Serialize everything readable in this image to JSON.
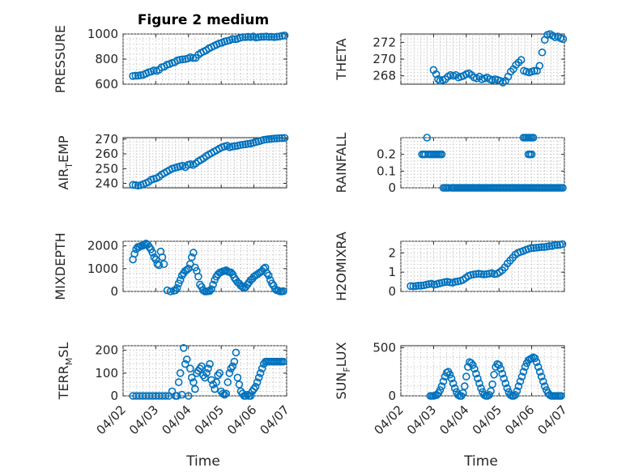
{
  "figure": {
    "title": "Figure 2 medium",
    "marker_color": "#0072bd",
    "axis_color": "#262626",
    "grid": true,
    "xlabel": "Time",
    "x_ticks": [
      "04/02",
      "04/03",
      "04/04",
      "04/05",
      "04/06",
      "04/07"
    ],
    "xlim": [
      0,
      5
    ]
  },
  "chart_data": [
    {
      "type": "scatter",
      "ylabel": [
        "PRESSURE"
      ],
      "ylim": [
        600,
        1000
      ],
      "yticks": [
        "600",
        "800",
        "1000"
      ],
      "ytick_values": [
        600,
        800,
        1000
      ],
      "x": [
        0.3,
        0.38,
        0.46,
        0.54,
        0.62,
        0.7,
        0.78,
        0.86,
        0.94,
        1.02,
        1.1,
        1.18,
        1.26,
        1.34,
        1.42,
        1.5,
        1.58,
        1.66,
        1.74,
        1.82,
        1.9,
        1.98,
        2.06,
        2.14,
        2.22,
        2.3,
        2.38,
        2.46,
        2.54,
        2.62,
        2.7,
        2.78,
        2.86,
        2.94,
        3.02,
        3.1,
        3.18,
        3.26,
        3.34,
        3.42,
        3.5,
        3.58,
        3.66,
        3.74,
        3.82,
        3.9,
        3.98,
        4.06,
        4.14,
        4.22,
        4.3,
        4.38,
        4.46,
        4.54,
        4.62,
        4.7,
        4.78,
        4.86,
        4.94
      ],
      "y": [
        665,
        668,
        668,
        672,
        675,
        685,
        695,
        700,
        710,
        705,
        715,
        735,
        740,
        755,
        760,
        770,
        775,
        790,
        795,
        798,
        800,
        805,
        815,
        808,
        810,
        835,
        850,
        860,
        870,
        885,
        895,
        905,
        915,
        925,
        930,
        940,
        945,
        950,
        960,
        958,
        962,
        970,
        975,
        975,
        978,
        975,
        980,
        972,
        975,
        978,
        978,
        980,
        977,
        978,
        975,
        978,
        980,
        985,
        988
      ]
    },
    {
      "type": "scatter",
      "ylabel": [
        "THETA"
      ],
      "ylim": [
        267,
        273
      ],
      "yticks": [
        "268",
        "270",
        "272"
      ],
      "ytick_values": [
        268,
        270,
        272
      ],
      "x": [
        1.0,
        1.08,
        1.14,
        1.2,
        1.28,
        1.36,
        1.44,
        1.52,
        1.6,
        1.68,
        1.76,
        1.84,
        1.92,
        2.0,
        2.08,
        2.16,
        2.24,
        2.32,
        2.4,
        2.48,
        2.56,
        2.64,
        2.72,
        2.8,
        2.88,
        2.96,
        3.04,
        3.12,
        3.2,
        3.28,
        3.36,
        3.44,
        3.52,
        3.6,
        3.68,
        3.76,
        3.84,
        3.92,
        4.0,
        4.08,
        4.16,
        4.24,
        4.32,
        4.4,
        4.48,
        4.56,
        4.64,
        4.72,
        4.8,
        4.88,
        4.96
      ],
      "y": [
        268.7,
        268.2,
        267.6,
        267.4,
        267.5,
        267.6,
        267.9,
        268.1,
        268.0,
        268.1,
        267.8,
        267.9,
        268.0,
        268.2,
        268.3,
        268.1,
        267.8,
        267.7,
        267.9,
        267.6,
        267.7,
        267.8,
        267.6,
        267.5,
        267.6,
        267.5,
        267.4,
        267.2,
        267.4,
        267.9,
        268.5,
        268.8,
        269.3,
        269.6,
        269.9,
        268.6,
        268.5,
        268.4,
        268.5,
        268.6,
        268.6,
        269.2,
        270.8,
        272.3,
        272.9,
        273.0,
        272.8,
        272.6,
        272.7,
        272.5,
        272.4
      ]
    },
    {
      "type": "scatter",
      "ylabel": [
        "AIR",
        "T",
        "EMP"
      ],
      "ylim": [
        237,
        271
      ],
      "yticks": [
        "240",
        "250",
        "260",
        "270"
      ],
      "ytick_values": [
        240,
        250,
        260,
        270
      ],
      "x": [
        0.3,
        0.38,
        0.46,
        0.54,
        0.62,
        0.7,
        0.78,
        0.86,
        0.94,
        1.02,
        1.1,
        1.18,
        1.26,
        1.34,
        1.42,
        1.5,
        1.58,
        1.66,
        1.74,
        1.82,
        1.9,
        1.98,
        2.06,
        2.14,
        2.22,
        2.3,
        2.38,
        2.46,
        2.54,
        2.62,
        2.7,
        2.78,
        2.86,
        2.94,
        3.02,
        3.1,
        3.18,
        3.26,
        3.34,
        3.42,
        3.5,
        3.58,
        3.66,
        3.74,
        3.82,
        3.9,
        3.98,
        4.06,
        4.14,
        4.22,
        4.3,
        4.38,
        4.46,
        4.54,
        4.62,
        4.7,
        4.78,
        4.86,
        4.94
      ],
      "y": [
        239,
        238.8,
        238.5,
        238.8,
        239.5,
        240.2,
        241,
        242.5,
        243,
        243.5,
        244.5,
        246,
        247,
        248,
        249,
        250,
        250.5,
        251,
        251.5,
        252,
        251,
        252.5,
        253,
        252.5,
        253.5,
        255,
        256,
        257,
        258.5,
        259.5,
        260.5,
        261.5,
        262.5,
        263.5,
        264.5,
        265,
        265.5,
        264.5,
        265,
        265.2,
        265.5,
        266,
        266.2,
        266.5,
        266.8,
        267,
        267.5,
        268,
        268.5,
        269,
        269.5,
        269.8,
        270,
        270.2,
        270.4,
        270.5,
        270.6,
        270.7,
        270.8
      ]
    },
    {
      "type": "scatter",
      "ylabel": [
        "RAINFALL"
      ],
      "ylim": [
        0,
        0.3
      ],
      "yticks": [
        "0",
        "0.1",
        "0.2"
      ],
      "ytick_values": [
        0,
        0.1,
        0.2
      ],
      "x": [
        0.65,
        0.7,
        0.75,
        0.8,
        0.85,
        0.9,
        0.95,
        1.0,
        1.05,
        1.1,
        1.15,
        1.2,
        1.25,
        1.3,
        1.35,
        1.4,
        1.45,
        1.55,
        1.6,
        1.65,
        1.7,
        1.75,
        1.8,
        1.85,
        1.9,
        1.95,
        2.0,
        2.05,
        2.1,
        2.15,
        2.2,
        2.25,
        2.3,
        2.35,
        2.4,
        2.45,
        2.5,
        2.55,
        2.6,
        2.65,
        2.7,
        2.75,
        2.8,
        2.85,
        2.9,
        2.95,
        3.0,
        3.05,
        3.1,
        3.15,
        3.2,
        3.25,
        3.3,
        3.35,
        3.4,
        3.45,
        3.5,
        3.55,
        3.6,
        3.65,
        3.7,
        3.75,
        3.8,
        3.85,
        3.9,
        3.95,
        4.0,
        4.05,
        4.1,
        4.15,
        4.2,
        4.25,
        4.3,
        4.35,
        4.4,
        4.45,
        4.5,
        4.55,
        4.6,
        4.65,
        4.7,
        4.75,
        4.8,
        4.85,
        4.9,
        4.95,
        3.75,
        3.8,
        3.85,
        3.9,
        3.95,
        4.0,
        4.05,
        3.9,
        3.95,
        4.0
      ],
      "y": [
        0.2,
        0.2,
        0.2,
        0.3,
        0.2,
        0.2,
        0.2,
        0.2,
        0.2,
        0.2,
        0.2,
        0.2,
        0.2,
        0.0,
        0.0,
        0.0,
        0.0,
        0.0,
        0.0,
        0.0,
        0.0,
        0.0,
        0.0,
        0.0,
        0.0,
        0.0,
        0.0,
        0.0,
        0.0,
        0.0,
        0.0,
        0.0,
        0.0,
        0.0,
        0.0,
        0.0,
        0.0,
        0.0,
        0.0,
        0.0,
        0.0,
        0.0,
        0.0,
        0.0,
        0.0,
        0.0,
        0.0,
        0.0,
        0.0,
        0.0,
        0.0,
        0.0,
        0.0,
        0.0,
        0.0,
        0.0,
        0.0,
        0.0,
        0.0,
        0.0,
        0.0,
        0.0,
        0.0,
        0.0,
        0.0,
        0.0,
        0.0,
        0.0,
        0.0,
        0.0,
        0.0,
        0.0,
        0.0,
        0.0,
        0.0,
        0.0,
        0.0,
        0.0,
        0.0,
        0.0,
        0.0,
        0.0,
        0.0,
        0.0,
        0.0,
        0.0,
        0.3,
        0.3,
        0.3,
        0.3,
        0.3,
        0.3,
        0.3,
        0.2,
        0.2,
        0.2
      ]
    },
    {
      "type": "scatter",
      "ylabel": [
        "MIXDEPTH"
      ],
      "ylim": [
        0,
        2200
      ],
      "yticks": [
        "0",
        "1000",
        "2000"
      ],
      "ytick_values": [
        0,
        1000,
        2000
      ],
      "x": [
        0.3,
        0.35,
        0.4,
        0.45,
        0.5,
        0.55,
        0.6,
        0.65,
        0.7,
        0.75,
        0.8,
        0.85,
        0.9,
        0.95,
        1.0,
        1.05,
        1.1,
        1.15,
        1.2,
        1.25,
        1.35,
        1.45,
        1.55,
        1.6,
        1.65,
        1.7,
        1.75,
        1.8,
        1.85,
        1.9,
        1.95,
        2.0,
        2.05,
        2.1,
        2.15,
        2.2,
        2.25,
        2.3,
        2.35,
        2.4,
        2.45,
        2.5,
        2.55,
        2.6,
        2.65,
        2.7,
        2.75,
        2.8,
        2.85,
        2.9,
        2.95,
        3.0,
        3.05,
        3.1,
        3.15,
        3.2,
        3.25,
        3.3,
        3.35,
        3.4,
        3.45,
        3.5,
        3.55,
        3.6,
        3.65,
        3.7,
        3.75,
        3.8,
        3.85,
        3.9,
        3.95,
        4.0,
        4.05,
        4.1,
        4.15,
        4.2,
        4.25,
        4.3,
        4.35,
        4.4,
        4.45,
        4.5,
        4.55,
        4.6,
        4.65,
        4.7,
        4.75,
        4.8,
        4.85,
        4.9
      ],
      "y": [
        1400,
        1650,
        1850,
        1950,
        1950,
        2000,
        2000,
        2050,
        2100,
        2050,
        1950,
        1850,
        1700,
        1500,
        1400,
        1200,
        1150,
        1750,
        1500,
        1200,
        50,
        0,
        30,
        50,
        150,
        350,
        500,
        700,
        800,
        900,
        950,
        1000,
        1200,
        1500,
        1700,
        1050,
        900,
        650,
        300,
        200,
        50,
        0,
        0,
        10,
        20,
        100,
        300,
        500,
        650,
        750,
        820,
        850,
        880,
        900,
        930,
        870,
        850,
        830,
        750,
        600,
        500,
        400,
        350,
        250,
        200,
        150,
        200,
        300,
        400,
        500,
        550,
        650,
        700,
        750,
        800,
        850,
        900,
        1000,
        1050,
        800,
        700,
        500,
        350,
        250,
        100,
        50,
        30,
        0,
        0,
        10
      ]
    },
    {
      "type": "scatter",
      "ylabel": [
        "H2OMIXRA"
      ],
      "ylim": [
        0,
        2.6
      ],
      "yticks": [
        "0",
        "1",
        "2"
      ],
      "ytick_values": [
        0,
        1,
        2
      ],
      "x": [
        0.3,
        0.38,
        0.46,
        0.54,
        0.62,
        0.7,
        0.78,
        0.86,
        0.94,
        1.02,
        1.1,
        1.18,
        1.26,
        1.34,
        1.42,
        1.5,
        1.58,
        1.66,
        1.74,
        1.82,
        1.9,
        1.98,
        2.06,
        2.14,
        2.22,
        2.3,
        2.38,
        2.46,
        2.54,
        2.62,
        2.7,
        2.78,
        2.86,
        2.94,
        3.02,
        3.1,
        3.18,
        3.26,
        3.34,
        3.42,
        3.5,
        3.58,
        3.66,
        3.74,
        3.82,
        3.9,
        3.98,
        4.06,
        4.14,
        4.22,
        4.3,
        4.38,
        4.46,
        4.54,
        4.62,
        4.7,
        4.78,
        4.86,
        4.94
      ],
      "y": [
        0.28,
        0.27,
        0.28,
        0.3,
        0.3,
        0.32,
        0.35,
        0.38,
        0.4,
        0.35,
        0.38,
        0.42,
        0.45,
        0.48,
        0.5,
        0.47,
        0.45,
        0.5,
        0.52,
        0.55,
        0.6,
        0.7,
        0.8,
        0.85,
        0.88,
        0.9,
        0.92,
        0.9,
        0.88,
        0.9,
        0.92,
        0.95,
        0.9,
        0.92,
        1.0,
        1.1,
        1.25,
        1.45,
        1.6,
        1.75,
        1.9,
        2.0,
        2.05,
        2.1,
        2.15,
        2.2,
        2.25,
        2.25,
        2.27,
        2.28,
        2.3,
        2.3,
        2.32,
        2.35,
        2.35,
        2.4,
        2.4,
        2.42,
        2.45
      ]
    },
    {
      "type": "scatter",
      "ylabel": [
        "TERR",
        "M",
        "SL"
      ],
      "ylim": [
        0,
        220
      ],
      "yticks": [
        "0",
        "100",
        "200"
      ],
      "ytick_values": [
        0,
        100,
        200
      ],
      "x": [
        0.3,
        0.4,
        0.5,
        0.6,
        0.7,
        0.8,
        0.9,
        1.0,
        1.1,
        1.2,
        1.3,
        1.4,
        1.5,
        1.6,
        1.65,
        1.7,
        1.75,
        1.8,
        1.85,
        1.9,
        1.95,
        2.0,
        2.05,
        2.1,
        2.15,
        2.2,
        2.25,
        2.3,
        2.35,
        2.4,
        2.45,
        2.5,
        2.55,
        2.6,
        2.65,
        2.7,
        2.75,
        2.8,
        2.85,
        2.9,
        2.95,
        3.0,
        3.05,
        3.1,
        3.15,
        3.2,
        3.25,
        3.3,
        3.35,
        3.4,
        3.45,
        3.5,
        3.55,
        3.6,
        3.65,
        3.7,
        3.75,
        3.8,
        3.85,
        3.9,
        3.95,
        4.0,
        4.05,
        4.1,
        4.15,
        4.2,
        4.25,
        4.3,
        4.35,
        4.4,
        4.45,
        4.5,
        4.55,
        4.6,
        4.65,
        4.7,
        4.75,
        4.8,
        4.85,
        4.9
      ],
      "y": [
        0,
        0,
        0,
        0,
        0,
        0,
        0,
        0,
        0,
        0,
        0,
        0,
        20,
        0,
        0,
        60,
        100,
        5,
        210,
        140,
        160,
        0,
        120,
        80,
        60,
        30,
        100,
        110,
        120,
        130,
        90,
        80,
        100,
        120,
        140,
        70,
        50,
        30,
        60,
        90,
        100,
        20,
        10,
        5,
        10,
        60,
        100,
        120,
        130,
        150,
        190,
        80,
        50,
        20,
        10,
        0,
        0,
        5,
        0,
        0,
        20,
        30,
        40,
        60,
        80,
        100,
        120,
        140,
        150,
        150,
        150,
        150,
        150,
        150,
        150,
        150,
        150,
        150,
        150,
        150
      ]
    },
    {
      "type": "scatter",
      "ylabel": [
        "SUN",
        "F",
        "LUX"
      ],
      "ylim": [
        0,
        520
      ],
      "yticks": [
        "0",
        "500"
      ],
      "ytick_values": [
        0,
        500
      ],
      "x": [
        0.9,
        0.95,
        1.0,
        1.05,
        1.1,
        1.15,
        1.2,
        1.25,
        1.3,
        1.35,
        1.4,
        1.45,
        1.5,
        1.55,
        1.6,
        1.65,
        1.7,
        1.75,
        1.8,
        1.85,
        1.9,
        1.95,
        2.0,
        2.05,
        2.1,
        2.15,
        2.2,
        2.25,
        2.3,
        2.35,
        2.4,
        2.45,
        2.5,
        2.55,
        2.6,
        2.65,
        2.7,
        2.75,
        2.8,
        2.85,
        2.9,
        2.95,
        3.0,
        3.05,
        3.1,
        3.15,
        3.2,
        3.25,
        3.3,
        3.35,
        3.4,
        3.45,
        3.5,
        3.55,
        3.6,
        3.65,
        3.7,
        3.75,
        3.8,
        3.85,
        3.9,
        3.95,
        4.0,
        4.05,
        4.1,
        4.15,
        4.2,
        4.25,
        4.3,
        4.35,
        4.4,
        4.45,
        4.5,
        4.55,
        4.6,
        4.65,
        4.7,
        4.75,
        4.8,
        4.85,
        4.9
      ],
      "y": [
        0,
        0,
        0,
        5,
        10,
        30,
        60,
        100,
        150,
        200,
        240,
        250,
        220,
        180,
        130,
        80,
        40,
        10,
        0,
        0,
        30,
        100,
        200,
        300,
        350,
        340,
        320,
        280,
        230,
        180,
        130,
        80,
        40,
        10,
        0,
        0,
        10,
        50,
        120,
        220,
        300,
        330,
        320,
        280,
        230,
        180,
        130,
        80,
        40,
        10,
        0,
        0,
        10,
        50,
        100,
        150,
        200,
        250,
        300,
        340,
        370,
        380,
        390,
        400,
        390,
        350,
        300,
        250,
        200,
        150,
        100,
        60,
        30,
        10,
        0,
        0,
        0,
        0,
        0,
        0,
        0
      ]
    }
  ]
}
